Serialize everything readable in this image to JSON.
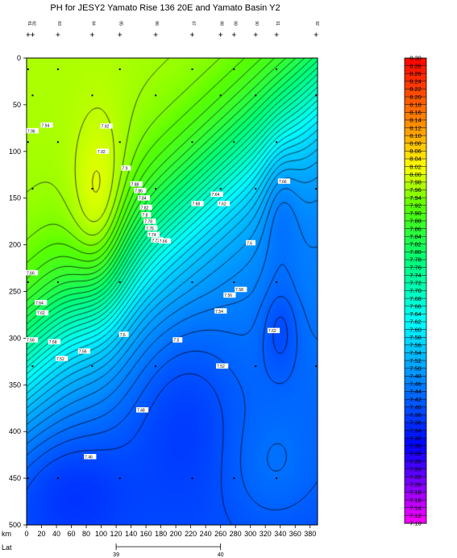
{
  "chart_data": {
    "type": "heatmap",
    "title": "PH for JESY2 Yamato Rise 136 20E and Yamato Basin Y2",
    "xlabel": "km",
    "x_ticks": [
      0,
      20,
      40,
      60,
      80,
      100,
      120,
      140,
      160,
      180,
      200,
      220,
      240,
      260,
      280,
      300,
      320,
      340,
      360,
      380
    ],
    "xlim": [
      0,
      390
    ],
    "ylim": [
      0,
      500
    ],
    "y_ticks": [
      0,
      50,
      100,
      150,
      200,
      250,
      300,
      350,
      400,
      450,
      500
    ],
    "y_reversed": true,
    "lat_label": "Lat",
    "lat_ticks": [
      {
        "km": 120,
        "label": "39"
      },
      {
        "km": 260,
        "label": "40"
      }
    ],
    "stations": [
      {
        "km": 2,
        "label": "81"
      },
      {
        "km": 8,
        "label": "82"
      },
      {
        "km": 42,
        "label": "83"
      },
      {
        "km": 88,
        "label": "84"
      },
      {
        "km": 125,
        "label": "85"
      },
      {
        "km": 173,
        "label": "86"
      },
      {
        "km": 222,
        "label": "87"
      },
      {
        "km": 260,
        "label": "88"
      },
      {
        "km": 278,
        "label": "89"
      },
      {
        "km": 307,
        "label": "90"
      },
      {
        "km": 335,
        "label": "91"
      },
      {
        "km": 388,
        "label": "92"
      }
    ],
    "contour_labels": [
      {
        "x": 20,
        "y": 72,
        "v": "7.94"
      },
      {
        "x": 1,
        "y": 78,
        "v": "7.96"
      },
      {
        "x": 100,
        "y": 73,
        "v": "7.92"
      },
      {
        "x": 95,
        "y": 100,
        "v": "7.92"
      },
      {
        "x": 128,
        "y": 118,
        "v": "7.9"
      },
      {
        "x": 140,
        "y": 135,
        "v": "7.88"
      },
      {
        "x": 145,
        "y": 142,
        "v": "7.86"
      },
      {
        "x": 150,
        "y": 150,
        "v": "7.84"
      },
      {
        "x": 153,
        "y": 160,
        "v": "7.82"
      },
      {
        "x": 155,
        "y": 168,
        "v": "7.8"
      },
      {
        "x": 158,
        "y": 175,
        "v": "7.78"
      },
      {
        "x": 160,
        "y": 182,
        "v": "7.76"
      },
      {
        "x": 163,
        "y": 189,
        "v": "7.74"
      },
      {
        "x": 168,
        "y": 195,
        "v": "7.72"
      },
      {
        "x": 178,
        "y": 196,
        "v": "7.66"
      },
      {
        "x": 248,
        "y": 146,
        "v": "7.64"
      },
      {
        "x": 222,
        "y": 156,
        "v": "7.68"
      },
      {
        "x": 257,
        "y": 156,
        "v": "7.62"
      },
      {
        "x": 338,
        "y": 132,
        "v": "7.66"
      },
      {
        "x": 295,
        "y": 198,
        "v": "7.6"
      },
      {
        "x": 0,
        "y": 230,
        "v": "7.66"
      },
      {
        "x": 280,
        "y": 248,
        "v": "7.58"
      },
      {
        "x": 265,
        "y": 254,
        "v": "7.56"
      },
      {
        "x": 253,
        "y": 271,
        "v": "7.54"
      },
      {
        "x": 12,
        "y": 262,
        "v": "7.64"
      },
      {
        "x": 14,
        "y": 273,
        "v": "7.62"
      },
      {
        "x": 324,
        "y": 292,
        "v": "7.62"
      },
      {
        "x": 0,
        "y": 302,
        "v": "7.56"
      },
      {
        "x": 30,
        "y": 304,
        "v": "7.58"
      },
      {
        "x": 125,
        "y": 296,
        "v": "7.6"
      },
      {
        "x": 197,
        "y": 302,
        "v": "7.5"
      },
      {
        "x": 70,
        "y": 314,
        "v": "7.56"
      },
      {
        "x": 40,
        "y": 322,
        "v": "7.52"
      },
      {
        "x": 255,
        "y": 330,
        "v": "7.52"
      },
      {
        "x": 148,
        "y": 377,
        "v": "7.48"
      },
      {
        "x": 78,
        "y": 427,
        "v": "7.46"
      }
    ],
    "colorbar": {
      "min": 7.1,
      "max": 8.3,
      "step": 0.02,
      "labels": [
        "8.30",
        "8.28",
        "8.26",
        "8.24",
        "8.22",
        "8.20",
        "8.18",
        "8.16",
        "8.14",
        "8.12",
        "8.10",
        "8.08",
        "8.06",
        "8.04",
        "8.02",
        "8.00",
        "7.98",
        "7.96",
        "7.94",
        "7.92",
        "7.90",
        "7.88",
        "7.86",
        "7.84",
        "7.82",
        "7.80",
        "7.78",
        "7.76",
        "7.74",
        "7.72",
        "7.70",
        "7.68",
        "7.66",
        "7.64",
        "7.62",
        "7.60",
        "7.58",
        "7.56",
        "7.54",
        "7.52",
        "7.50",
        "7.48",
        "7.46",
        "7.44",
        "7.42",
        "7.40",
        "7.38",
        "7.36",
        "7.34",
        "7.32",
        "7.30",
        "7.28",
        "7.26",
        "7.24",
        "7.22",
        "7.20",
        "7.18",
        "7.16",
        "7.14",
        "7.12",
        "7.10"
      ]
    }
  }
}
